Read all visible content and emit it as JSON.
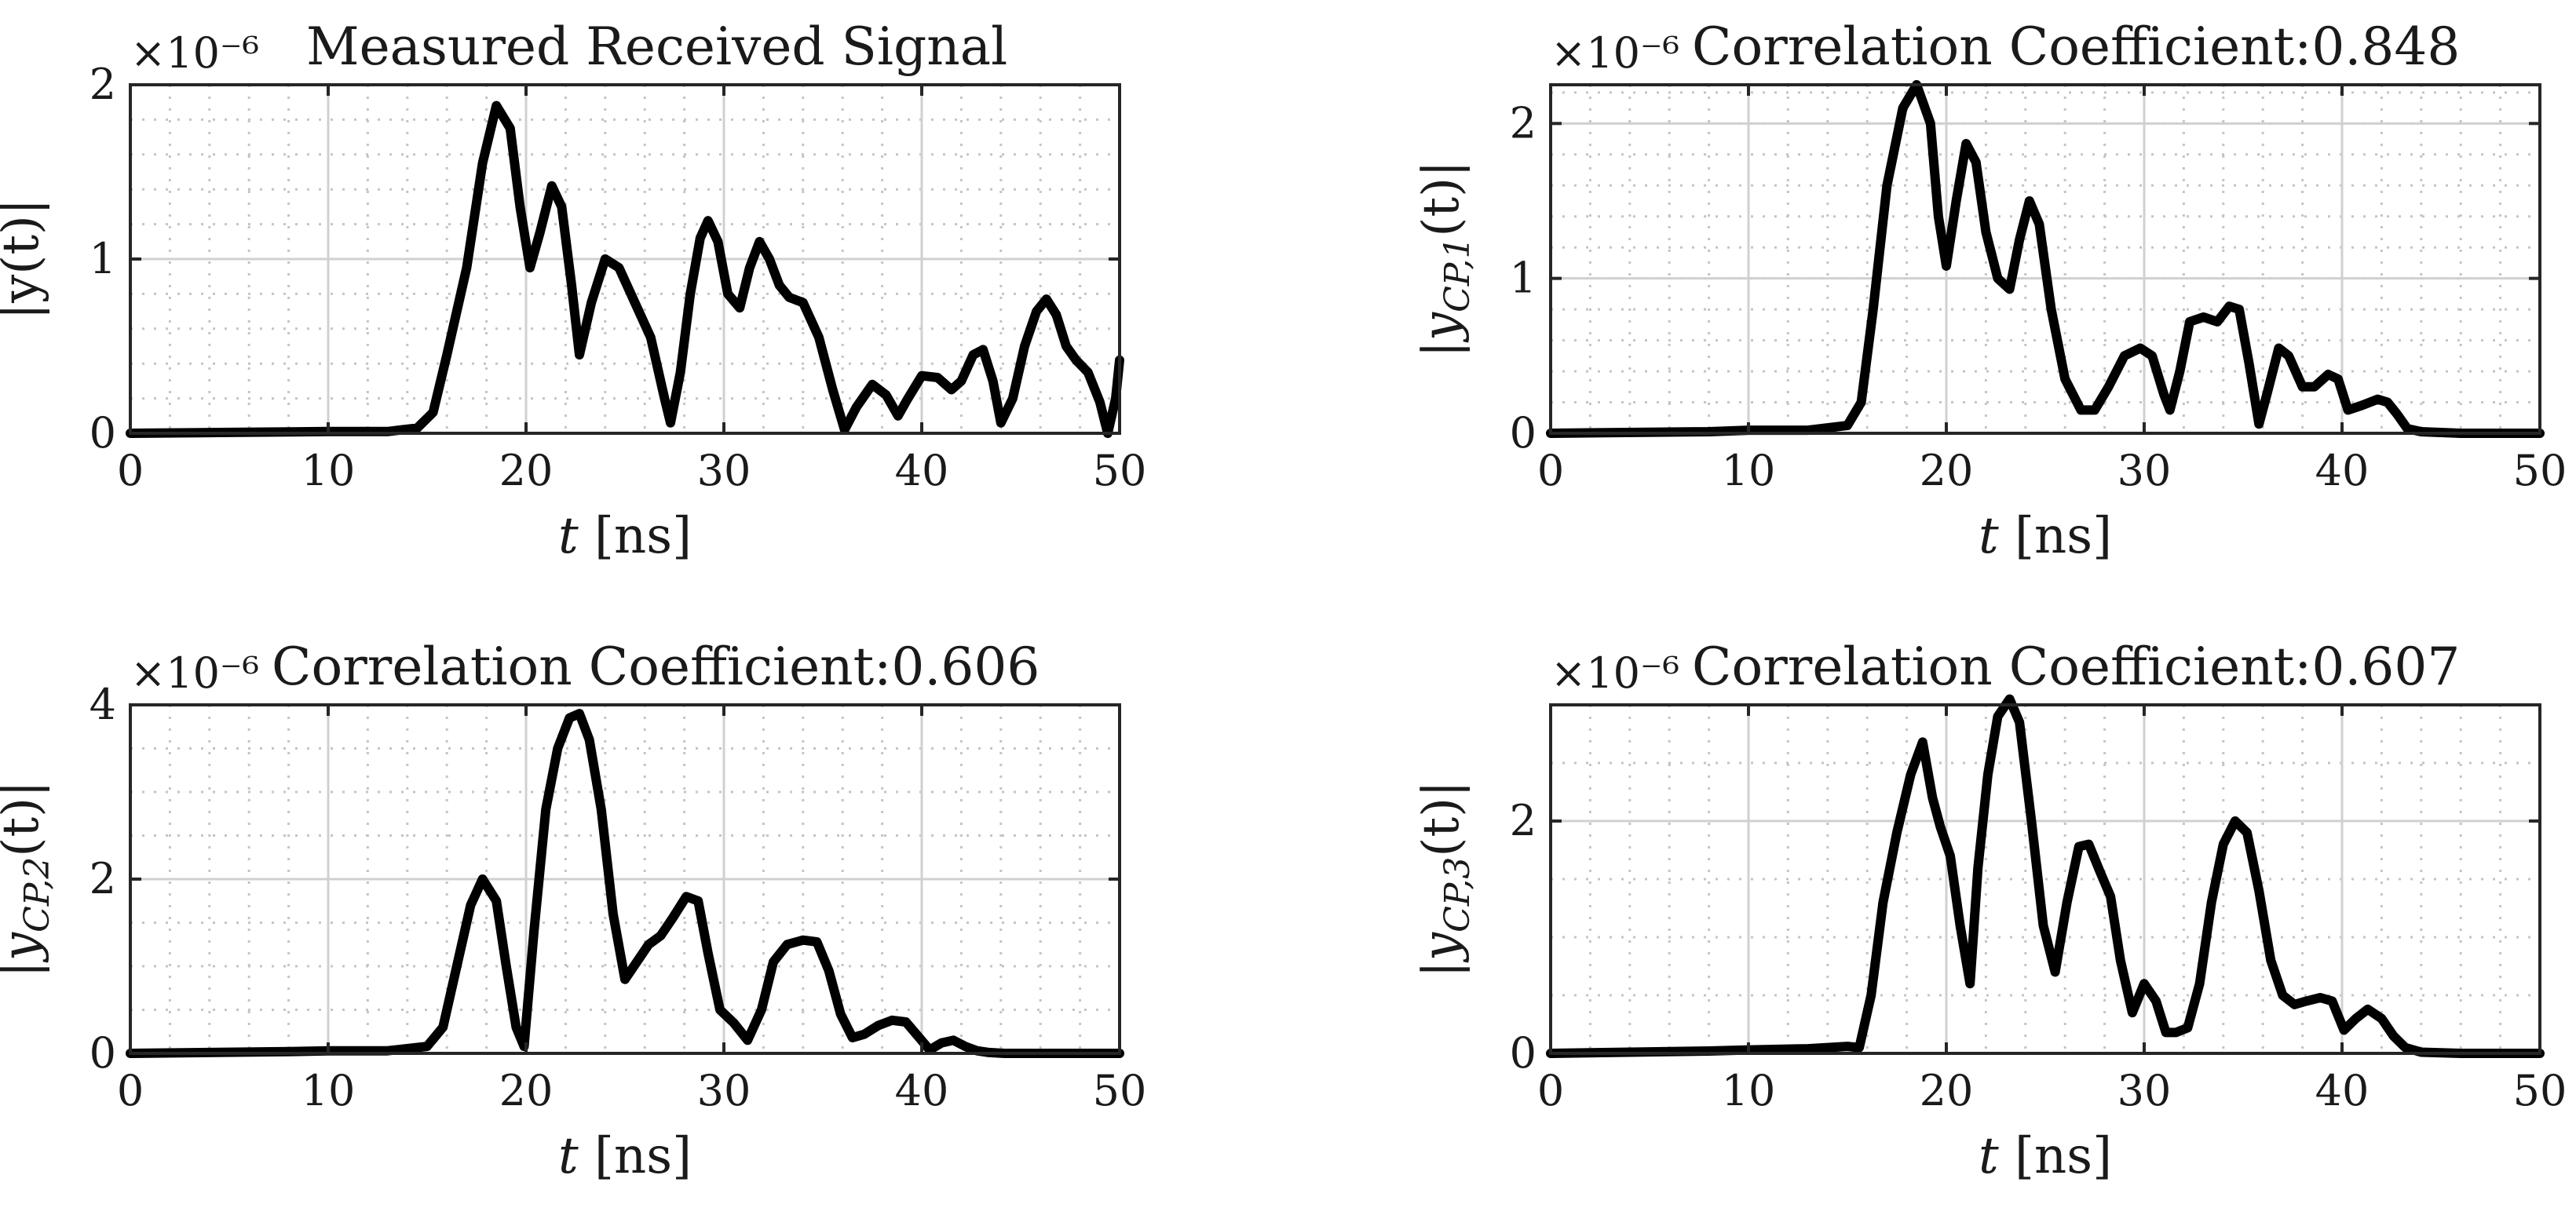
{
  "chart_data": [
    {
      "type": "line",
      "title": "Measured Received Signal",
      "xlabel": "t [ns]",
      "ylabel": "|y(t)|",
      "multiplier": "×10⁻⁶",
      "xlim": [
        0,
        50
      ],
      "ylim": [
        0,
        2
      ],
      "xticks": [
        "0",
        "10",
        "20",
        "30",
        "40",
        "50"
      ],
      "yticks": [
        "0",
        "1",
        "2"
      ],
      "grid": true,
      "series": [
        {
          "color": "#000000",
          "x": [
            0,
            5,
            10,
            13,
            14.5,
            15.3,
            16,
            17,
            17.8,
            18.5,
            19.2,
            19.7,
            20.2,
            20.7,
            21.3,
            21.8,
            22.3,
            22.7,
            23.3,
            24,
            24.7,
            25.5,
            26.3,
            27,
            27.3,
            27.8,
            28.3,
            28.8,
            29.2,
            29.7,
            30.2,
            30.8,
            31.3,
            31.8,
            32.3,
            32.8,
            33.3,
            34,
            34.8,
            35.5,
            36.1,
            36.7,
            37.5,
            38.2,
            38.8,
            39.3,
            40,
            40.8,
            41.5,
            42,
            42.6,
            43.1,
            43.6,
            44,
            44.6,
            45.2,
            45.8,
            46.3,
            46.8,
            47.3,
            47.8,
            48.4,
            49,
            49.4,
            49.8,
            50
          ],
          "y": [
            0.0,
            0.005,
            0.01,
            0.01,
            0.03,
            0.12,
            0.45,
            0.95,
            1.55,
            1.88,
            1.75,
            1.3,
            0.95,
            1.15,
            1.42,
            1.3,
            0.85,
            0.45,
            0.75,
            1.0,
            0.95,
            0.75,
            0.55,
            0.2,
            0.06,
            0.35,
            0.8,
            1.12,
            1.22,
            1.1,
            0.8,
            0.72,
            0.95,
            1.1,
            1.0,
            0.85,
            0.78,
            0.75,
            0.55,
            0.25,
            0.02,
            0.15,
            0.28,
            0.22,
            0.1,
            0.2,
            0.33,
            0.32,
            0.25,
            0.3,
            0.45,
            0.48,
            0.3,
            0.06,
            0.2,
            0.5,
            0.7,
            0.77,
            0.68,
            0.5,
            0.42,
            0.35,
            0.18,
            0.0,
            0.2,
            0.42
          ]
        }
      ]
    },
    {
      "type": "line",
      "title": "Correlation Coefficient:0.848",
      "xlabel": "t [ns]",
      "ylabel": "|y_CP,1(t)|",
      "multiplier": "×10⁻⁶",
      "xlim": [
        0,
        50
      ],
      "ylim": [
        0,
        2.25
      ],
      "xticks": [
        "0",
        "10",
        "20",
        "30",
        "40",
        "50"
      ],
      "yticks": [
        "0",
        "1",
        "2"
      ],
      "grid": true,
      "series": [
        {
          "color": "#000000",
          "x": [
            0,
            8,
            10,
            13,
            15,
            15.7,
            16.3,
            17,
            17.8,
            18.5,
            19.2,
            19.6,
            20,
            20.5,
            21,
            21.5,
            22,
            22.6,
            23.2,
            23.7,
            24.2,
            24.7,
            25.3,
            26,
            26.8,
            27.5,
            28.2,
            29,
            29.8,
            30.4,
            31,
            31.3,
            31.8,
            32.3,
            33,
            33.7,
            34.3,
            34.8,
            35.3,
            35.8,
            36.2,
            36.8,
            37.3,
            38,
            38.6,
            39.3,
            39.8,
            40.3,
            41,
            41.8,
            42.3,
            42.8,
            43.3,
            44,
            46,
            50
          ],
          "y": [
            0.0,
            0.01,
            0.02,
            0.02,
            0.05,
            0.2,
            0.8,
            1.6,
            2.1,
            2.25,
            2.0,
            1.4,
            1.08,
            1.5,
            1.87,
            1.75,
            1.3,
            1.0,
            0.93,
            1.25,
            1.5,
            1.35,
            0.8,
            0.35,
            0.15,
            0.15,
            0.3,
            0.5,
            0.55,
            0.5,
            0.25,
            0.15,
            0.4,
            0.72,
            0.75,
            0.72,
            0.82,
            0.8,
            0.45,
            0.06,
            0.25,
            0.55,
            0.5,
            0.3,
            0.3,
            0.38,
            0.35,
            0.15,
            0.18,
            0.22,
            0.2,
            0.12,
            0.03,
            0.01,
            0.0,
            0.0
          ]
        }
      ]
    },
    {
      "type": "line",
      "title": "Correlation Coefficient:0.606",
      "xlabel": "t [ns]",
      "ylabel": "|y_CP,2(t)|",
      "multiplier": "×10⁻⁶",
      "xlim": [
        0,
        50
      ],
      "ylim": [
        0,
        4
      ],
      "xticks": [
        "0",
        "10",
        "20",
        "30",
        "40",
        "50"
      ],
      "yticks": [
        "0",
        "2",
        "4"
      ],
      "grid": true,
      "series": [
        {
          "color": "#000000",
          "x": [
            0,
            8,
            10,
            13,
            15,
            15.8,
            16.5,
            17.2,
            17.8,
            18.5,
            19,
            19.5,
            19.9,
            20.4,
            21,
            21.6,
            22.2,
            22.7,
            23.2,
            23.8,
            24.4,
            25,
            25.6,
            26.2,
            26.8,
            27.4,
            28.1,
            28.7,
            29.2,
            29.8,
            30.5,
            31.2,
            31.9,
            32.5,
            33.2,
            34,
            34.7,
            35.3,
            35.9,
            36.5,
            37.1,
            37.8,
            38.5,
            39.2,
            39.8,
            40.4,
            41,
            41.6,
            42.2,
            42.8,
            43.4,
            44.2,
            46,
            50
          ],
          "y": [
            0.0,
            0.02,
            0.03,
            0.03,
            0.08,
            0.3,
            1.0,
            1.7,
            2.0,
            1.75,
            1.0,
            0.3,
            0.08,
            1.4,
            2.8,
            3.5,
            3.85,
            3.9,
            3.6,
            2.8,
            1.6,
            0.85,
            1.05,
            1.25,
            1.35,
            1.55,
            1.8,
            1.75,
            1.15,
            0.5,
            0.35,
            0.15,
            0.5,
            1.05,
            1.25,
            1.3,
            1.28,
            0.95,
            0.45,
            0.18,
            0.22,
            0.32,
            0.38,
            0.36,
            0.2,
            0.04,
            0.12,
            0.15,
            0.08,
            0.03,
            0.01,
            0.0,
            0.0,
            0.0
          ]
        }
      ]
    },
    {
      "type": "line",
      "title": "Correlation Coefficient:0.607",
      "xlabel": "t [ns]",
      "ylabel": "|y_CP,3(t)|",
      "multiplier": "×10⁻⁶",
      "xlim": [
        0,
        50
      ],
      "ylim": [
        0,
        3
      ],
      "xticks": [
        "0",
        "10",
        "20",
        "30",
        "40",
        "50"
      ],
      "yticks": [
        "0",
        "2"
      ],
      "grid": true,
      "series": [
        {
          "color": "#000000",
          "x": [
            0,
            8,
            10,
            13,
            15,
            15.6,
            16.2,
            16.8,
            17.5,
            18.2,
            18.8,
            19.3,
            19.7,
            20.2,
            20.7,
            21.2,
            21.6,
            22.1,
            22.6,
            23.2,
            23.7,
            24.3,
            24.9,
            25.5,
            26.1,
            26.7,
            27.2,
            27.8,
            28.3,
            28.8,
            29.4,
            30,
            30.6,
            31.1,
            31.6,
            32.2,
            32.8,
            33.4,
            34,
            34.6,
            35.2,
            35.8,
            36.4,
            37,
            37.6,
            38.2,
            38.9,
            39.5,
            40.1,
            40.7,
            41.3,
            42,
            42.6,
            43.2,
            44,
            46,
            50
          ],
          "y": [
            0.0,
            0.02,
            0.03,
            0.04,
            0.06,
            0.05,
            0.5,
            1.3,
            1.9,
            2.4,
            2.68,
            2.2,
            1.95,
            1.7,
            1.1,
            0.6,
            1.6,
            2.4,
            2.9,
            3.05,
            2.85,
            2.0,
            1.1,
            0.7,
            1.3,
            1.78,
            1.8,
            1.55,
            1.35,
            0.8,
            0.35,
            0.6,
            0.45,
            0.18,
            0.18,
            0.22,
            0.6,
            1.3,
            1.8,
            2.0,
            1.9,
            1.4,
            0.8,
            0.5,
            0.42,
            0.45,
            0.48,
            0.45,
            0.2,
            0.3,
            0.38,
            0.3,
            0.15,
            0.05,
            0.01,
            0.0,
            0.0
          ]
        }
      ]
    }
  ]
}
